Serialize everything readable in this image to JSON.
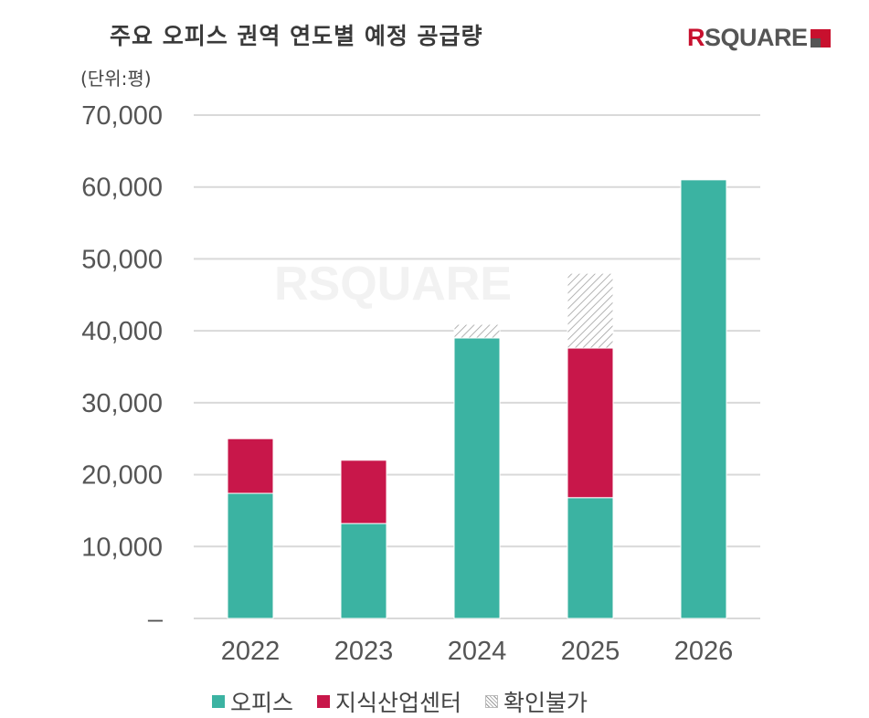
{
  "header": {
    "title": "주요 오피스 권역 연도별 예정 공급량",
    "unit": "(단위:평)",
    "logo": "RSQUARE"
  },
  "colors": {
    "office": "#3bb3a2",
    "knowledge": "#c8174a",
    "unknown": "hatch-gray",
    "grid": "#d9d9d9"
  },
  "chart_data": {
    "type": "bar",
    "stacked": true,
    "title": "주요 오피스 권역 연도별 예정 공급량",
    "ylabel": "(단위:평)",
    "categories": [
      "2022",
      "2023",
      "2024",
      "2025",
      "2026"
    ],
    "ylim": [
      0,
      70000
    ],
    "yticks": [
      0,
      10000,
      20000,
      30000,
      40000,
      50000,
      60000,
      70000
    ],
    "ytick_labels": [
      "–",
      "10,000",
      "20,000",
      "30,000",
      "40,000",
      "50,000",
      "60,000",
      "70,000"
    ],
    "grid": true,
    "legend_position": "bottom",
    "series": [
      {
        "name": "오피스",
        "values": [
          17400,
          13200,
          39000,
          16800,
          61000
        ]
      },
      {
        "name": "지식산업센터",
        "values": [
          7600,
          8800,
          0,
          20800,
          0
        ]
      },
      {
        "name": "확인불가",
        "values": [
          0,
          0,
          1900,
          10400,
          0
        ]
      }
    ]
  }
}
